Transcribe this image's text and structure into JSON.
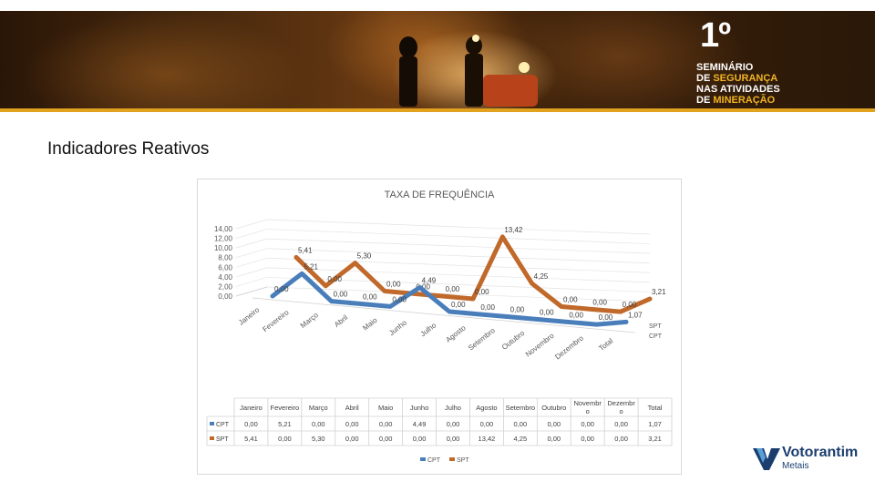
{
  "banner": {
    "number": "1º",
    "line1": "SEMINÁRIO",
    "line2a": "DE ",
    "line2b": "SEGURANÇA",
    "line3a": "NAS ",
    "line3b": "ATIVIDADES",
    "line4a": "DE ",
    "line4b": "MINERAÇÃO"
  },
  "slide": {
    "title": "Indicadores Reativos"
  },
  "company": {
    "name": "Votorantim",
    "sub": "Metais"
  },
  "chart_data": {
    "type": "line",
    "title": "TAXA DE FREQUÊNCIA",
    "categories": [
      "Janeiro",
      "Fevereiro",
      "Março",
      "Abril",
      "Maio",
      "Junho",
      "Julho",
      "Agosto",
      "Setembro",
      "Outubro",
      "Novembro",
      "Dezembro",
      "Total"
    ],
    "table_headers": [
      "Janeiro",
      "Fevereiro",
      "Março",
      "Abril",
      "Maio",
      "Junho",
      "Julho",
      "Agosto",
      "Setembro",
      "Outubro",
      "Novembr o",
      "Dezembr o",
      "Total"
    ],
    "series": [
      {
        "name": "CPT",
        "values": [
          0.0,
          5.21,
          0.0,
          0.0,
          0.0,
          4.49,
          0.0,
          0.0,
          0.0,
          0.0,
          0.0,
          0.0,
          1.07
        ],
        "labels": [
          "0,00",
          "5,21",
          "0,00",
          "0,00",
          "0,00",
          "4,49",
          "0,00",
          "0,00",
          "0,00",
          "0,00",
          "0,00",
          "0,00",
          "1,07"
        ],
        "color": "#4a7ebb"
      },
      {
        "name": "SPT",
        "values": [
          5.41,
          0.0,
          5.3,
          0.0,
          0.0,
          0.0,
          0.0,
          13.42,
          4.25,
          0.0,
          0.0,
          0.0,
          3.21
        ],
        "labels": [
          "5,41",
          "0,00",
          "5,30",
          "0,00",
          "0,00",
          "0,00",
          "0,00",
          "13,42",
          "4,25",
          "0,00",
          "0,00",
          "0,00",
          "3,21"
        ],
        "color": "#c0692a"
      }
    ],
    "yticks": [
      "14,00",
      "12,00",
      "10,00",
      "8,00",
      "6,00",
      "4,00",
      "2,00",
      "0,00"
    ],
    "ylim": [
      0,
      14
    ],
    "depth_labels": [
      "SPT",
      "CPT"
    ],
    "legend": [
      "CPT",
      "SPT"
    ],
    "legend_position": "bottom"
  }
}
